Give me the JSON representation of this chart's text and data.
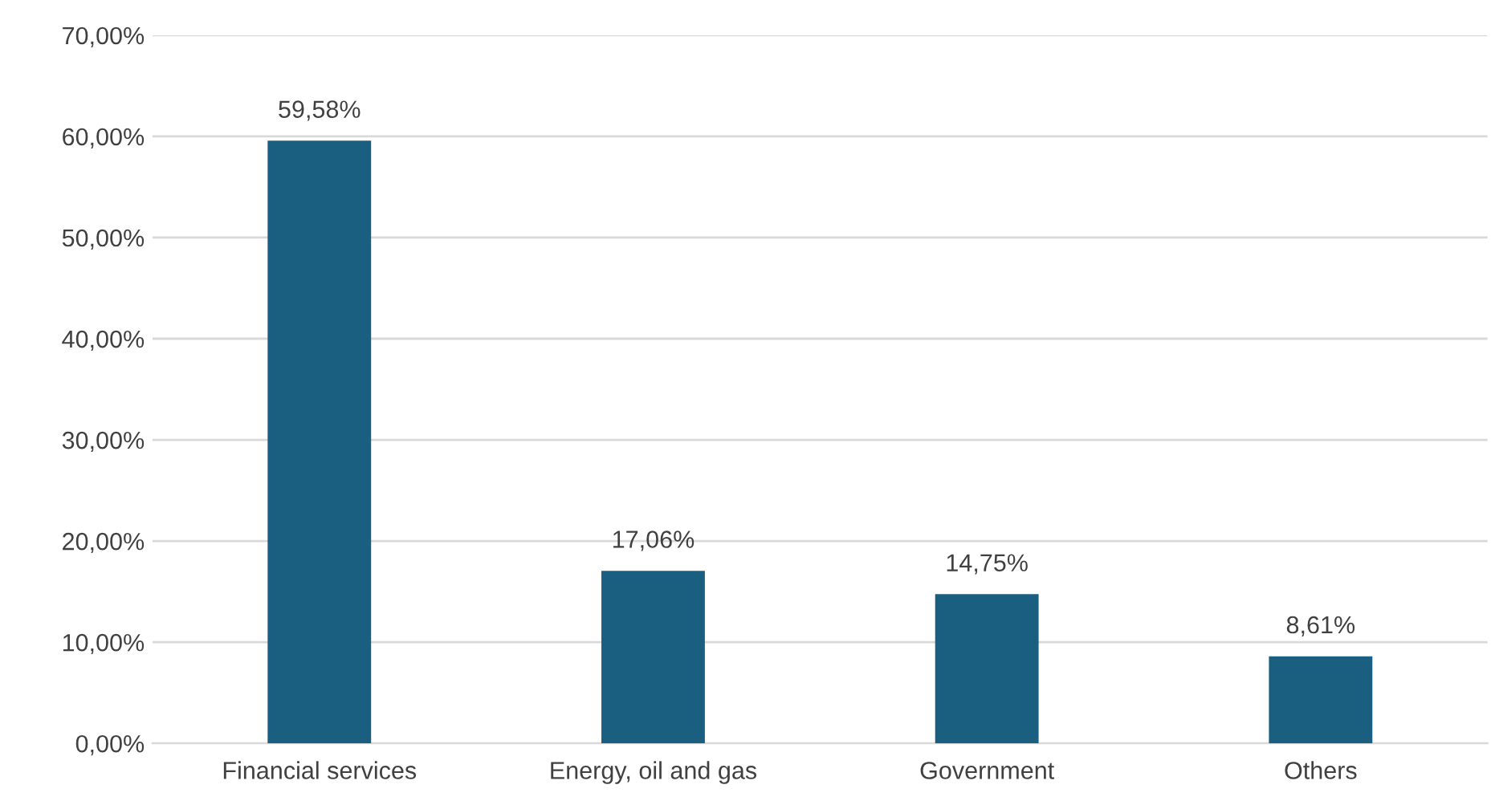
{
  "chart_data": {
    "type": "bar",
    "categories": [
      "Financial services",
      "Energy, oil and gas",
      "Government",
      "Others"
    ],
    "values": [
      59.58,
      17.06,
      14.75,
      8.61
    ],
    "color": "#1a5e80",
    "value_labels": [
      "59,58%",
      "17,06%",
      "14,75%",
      "8,61%"
    ],
    "ylim": [
      0,
      70
    ],
    "yticks": [
      {
        "value": 0,
        "label": "0,00%"
      },
      {
        "value": 10,
        "label": "10,00%"
      },
      {
        "value": 20,
        "label": "20,00%"
      },
      {
        "value": 30,
        "label": "30,00%"
      },
      {
        "value": 40,
        "label": "40,00%"
      },
      {
        "value": 50,
        "label": "50,00%"
      },
      {
        "value": 60,
        "label": "60,00%"
      },
      {
        "value": 70,
        "label": "70,00%"
      }
    ],
    "grid": "y"
  }
}
